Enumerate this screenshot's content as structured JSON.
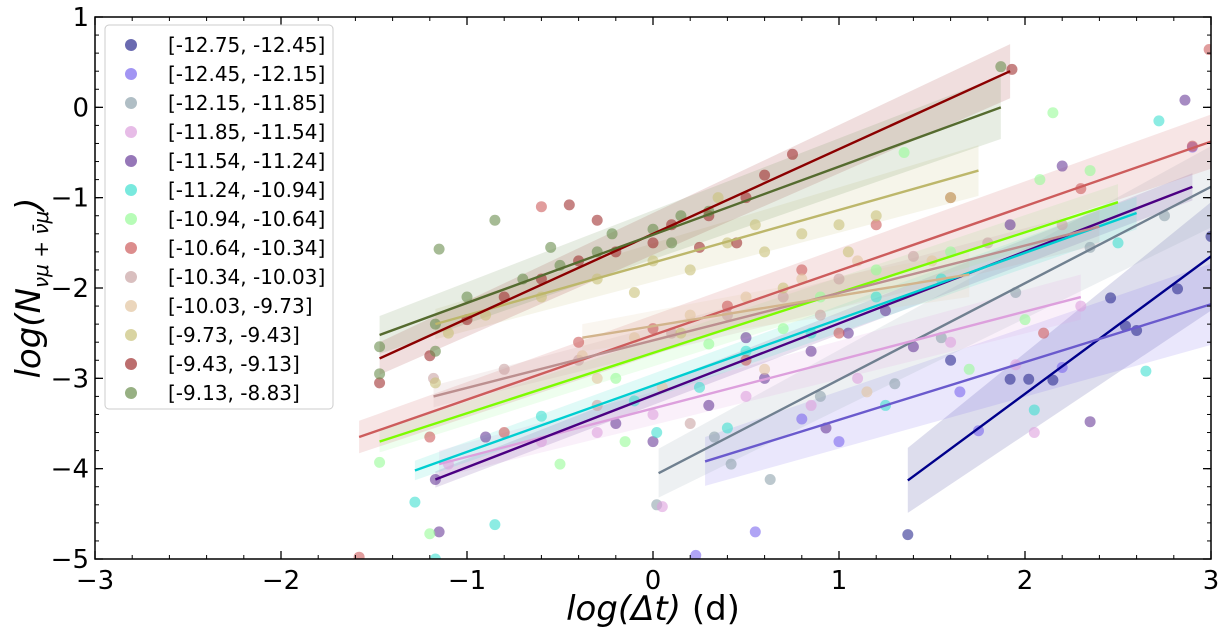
{
  "chart_data": {
    "type": "scatter",
    "xlabel_main": "log(Δt)",
    "xlabel_unit": " (d)",
    "ylabel_main": "log(N",
    "ylabel_sub": "νμ + ν̄μ",
    "ylabel_close": ")",
    "xlim": [
      -3,
      3
    ],
    "ylim": [
      -5,
      1
    ],
    "xticks": [
      -3,
      -2,
      -1,
      0,
      1,
      2,
      3
    ],
    "yticks": [
      -5,
      -4,
      -3,
      -2,
      -1,
      0,
      1
    ],
    "xtick_labels": [
      "−3",
      "−2",
      "−1",
      "0",
      "1",
      "2",
      "3"
    ],
    "ytick_labels": [
      "−5",
      "−4",
      "−3",
      "−2",
      "−1",
      "0",
      "1"
    ],
    "legend_position": "top-left",
    "series": [
      {
        "name": "[-12.75, -12.45]",
        "color": "#2b2b8f",
        "line_color": "#00008b",
        "fit": {
          "x0": 1.37,
          "x1": 3.0,
          "y0": -4.13,
          "y1": -1.65
        },
        "band": 0.6,
        "points": [
          [
            1.37,
            -4.73
          ],
          [
            1.92,
            -3.01
          ],
          [
            2.02,
            -3.01
          ],
          [
            2.46,
            -2.11
          ],
          [
            2.6,
            -2.47
          ],
          [
            2.54,
            -2.42
          ],
          [
            3.0,
            -1.43
          ],
          [
            2.82,
            -2.01
          ],
          [
            2.15,
            -3.02
          ],
          [
            1.6,
            -2.8
          ]
        ]
      },
      {
        "name": "[-12.45, -12.15]",
        "color": "#7b68ee",
        "line_color": "#6a5acd",
        "fit": {
          "x0": 0.28,
          "x1": 3.0,
          "y0": -3.92,
          "y1": -2.18
        },
        "band": 0.45,
        "points": [
          [
            0.23,
            -4.96
          ],
          [
            0.55,
            -4.7
          ],
          [
            1.0,
            -3.7
          ],
          [
            1.75,
            -3.58
          ],
          [
            2.2,
            -2.88
          ],
          [
            2.9,
            -0.44
          ],
          [
            1.65,
            -3.15
          ],
          [
            0.8,
            -3.45
          ]
        ]
      },
      {
        "name": "[-12.15, -11.85]",
        "color": "#8fa3ad",
        "line_color": "#708090",
        "fit": {
          "x0": 0.03,
          "x1": 3.0,
          "y0": -4.05,
          "y1": -0.88
        },
        "band": 0.45,
        "points": [
          [
            0.02,
            -4.4
          ],
          [
            0.33,
            -3.65
          ],
          [
            0.42,
            -3.95
          ],
          [
            0.63,
            -4.12
          ],
          [
            1.3,
            -3.06
          ],
          [
            1.95,
            -2.05
          ],
          [
            2.35,
            -1.55
          ],
          [
            2.75,
            -1.2
          ],
          [
            0.9,
            -3.2
          ],
          [
            1.55,
            -2.55
          ]
        ]
      },
      {
        "name": "[-11.85, -11.54]",
        "color": "#dda0dd",
        "line_color": "#dda0dd",
        "fit": {
          "x0": -1.15,
          "x1": 2.3,
          "y0": -3.95,
          "y1": -2.1
        },
        "band": 0.25,
        "points": [
          [
            -1.1,
            -3.95
          ],
          [
            -0.6,
            -3.7
          ],
          [
            0.0,
            -3.4
          ],
          [
            0.5,
            -3.2
          ],
          [
            1.1,
            -3.0
          ],
          [
            1.6,
            -2.6
          ],
          [
            2.05,
            -3.6
          ],
          [
            0.05,
            -4.42
          ],
          [
            0.85,
            -3.3
          ],
          [
            -0.3,
            -3.6
          ],
          [
            1.95,
            -2.85
          ],
          [
            2.3,
            -2.2
          ]
        ]
      },
      {
        "name": "[-11.54, -11.24]",
        "color": "#6a3d9a",
        "line_color": "#4b0082",
        "fit": {
          "x0": -1.17,
          "x1": 2.9,
          "y0": -4.12,
          "y1": -0.88
        },
        "band": 0.15,
        "points": [
          [
            -1.17,
            -4.12
          ],
          [
            -0.9,
            -3.65
          ],
          [
            -0.2,
            -3.5
          ],
          [
            0.3,
            -3.3
          ],
          [
            0.6,
            -3.0
          ],
          [
            0.85,
            -2.7
          ],
          [
            1.05,
            -2.5
          ],
          [
            1.4,
            -2.65
          ],
          [
            2.2,
            -0.65
          ],
          [
            2.86,
            0.08
          ],
          [
            -1.15,
            -4.7
          ],
          [
            2.35,
            -3.48
          ],
          [
            0.0,
            -3.7
          ],
          [
            0.5,
            -2.55
          ],
          [
            1.25,
            -2.25
          ],
          [
            1.92,
            -1.3
          ],
          [
            0.93,
            -3.55
          ]
        ]
      },
      {
        "name": "[-11.24, -10.94]",
        "color": "#40e0d0",
        "line_color": "#00ced1",
        "fit": {
          "x0": -1.28,
          "x1": 2.6,
          "y0": -4.02,
          "y1": -1.17
        },
        "band": 0.18,
        "points": [
          [
            -1.28,
            -4.37
          ],
          [
            -1.17,
            -5.0
          ],
          [
            -0.85,
            -4.62
          ],
          [
            -0.6,
            -3.42
          ],
          [
            -0.1,
            -3.25
          ],
          [
            0.25,
            -3.1
          ],
          [
            0.5,
            -2.7
          ],
          [
            0.85,
            -2.5
          ],
          [
            1.2,
            -2.1
          ],
          [
            2.5,
            -1.5
          ],
          [
            2.65,
            -2.92
          ],
          [
            2.72,
            -0.15
          ],
          [
            0.02,
            -3.6
          ],
          [
            0.4,
            -3.55
          ],
          [
            1.55,
            -1.9
          ],
          [
            2.05,
            -3.35
          ],
          [
            1.25,
            -3.3
          ]
        ]
      },
      {
        "name": "[-10.94, -10.64]",
        "color": "#98fb98",
        "line_color": "#7cfc00",
        "fit": {
          "x0": -1.47,
          "x1": 2.5,
          "y0": -3.7,
          "y1": -1.05
        },
        "band": 0.2,
        "points": [
          [
            -1.47,
            -3.93
          ],
          [
            -1.2,
            -4.72
          ],
          [
            -0.5,
            -3.95
          ],
          [
            -0.15,
            -3.7
          ],
          [
            0.3,
            -2.62
          ],
          [
            0.7,
            -2.45
          ],
          [
            1.2,
            -1.8
          ],
          [
            1.6,
            -1.6
          ],
          [
            2.08,
            -0.8
          ],
          [
            2.15,
            -0.06
          ],
          [
            2.35,
            -0.7
          ],
          [
            -0.2,
            -3.0
          ],
          [
            0.9,
            -2.1
          ],
          [
            2.0,
            -2.35
          ],
          [
            1.7,
            -2.9
          ],
          [
            1.35,
            -0.5
          ]
        ]
      },
      {
        "name": "[-10.64, -10.34]",
        "color": "#cd5c5c",
        "line_color": "#cd5c5c",
        "fit": {
          "x0": -1.58,
          "x1": 3.0,
          "y0": -3.65,
          "y1": -0.38
        },
        "band": 0.3,
        "points": [
          [
            -1.58,
            -4.98
          ],
          [
            -1.2,
            -3.65
          ],
          [
            -0.8,
            -3.6
          ],
          [
            -0.4,
            -2.6
          ],
          [
            0.0,
            -2.45
          ],
          [
            0.4,
            -2.2
          ],
          [
            0.8,
            -1.8
          ],
          [
            1.2,
            -1.3
          ],
          [
            1.6,
            -1.0
          ],
          [
            2.1,
            -2.5
          ],
          [
            2.9,
            -0.43
          ],
          [
            2.99,
            0.64
          ],
          [
            2.3,
            -0.9
          ],
          [
            -0.6,
            -1.1
          ],
          [
            0.5,
            -2.8
          ],
          [
            1.0,
            -2.5
          ]
        ]
      },
      {
        "name": "[-10.34, -10.03]",
        "color": "#c9a4a4",
        "line_color": "#bc8f8f",
        "fit": {
          "x0": -1.18,
          "x1": 2.4,
          "y0": -3.2,
          "y1": -1.32
        },
        "band": 0.2,
        "points": [
          [
            -1.18,
            -3.0
          ],
          [
            -0.8,
            -2.9
          ],
          [
            -0.4,
            -2.8
          ],
          [
            0.1,
            -2.5
          ],
          [
            0.4,
            -2.3
          ],
          [
            0.7,
            -2.1
          ],
          [
            1.0,
            -1.9
          ],
          [
            1.4,
            -1.65
          ],
          [
            1.8,
            -1.5
          ],
          [
            2.2,
            -1.3
          ],
          [
            0.2,
            -3.5
          ],
          [
            -0.3,
            -3.3
          ],
          [
            0.9,
            -2.3
          ]
        ]
      },
      {
        "name": "[-10.03, -9.73]",
        "color": "#e3c4a0",
        "line_color": "#d2b48c",
        "fit": {
          "x0": -0.38,
          "x1": 1.7,
          "y0": -2.55,
          "y1": -1.85
        },
        "band": 0.25,
        "points": [
          [
            -0.38,
            -2.75
          ],
          [
            -0.1,
            -2.55
          ],
          [
            0.2,
            -2.3
          ],
          [
            0.5,
            -2.1
          ],
          [
            0.8,
            -1.9
          ],
          [
            1.1,
            -1.7
          ],
          [
            1.5,
            -1.7
          ],
          [
            -0.3,
            -3.0
          ],
          [
            0.05,
            -3.1
          ],
          [
            0.6,
            -2.9
          ],
          [
            1.15,
            -3.15
          ]
        ]
      },
      {
        "name": "[-9.73, -9.43]",
        "color": "#c9c27a",
        "line_color": "#bdb76b",
        "fit": {
          "x0": -1.17,
          "x1": 1.75,
          "y0": -2.4,
          "y1": -0.7
        },
        "band": 0.28,
        "points": [
          [
            -1.17,
            -3.05
          ],
          [
            -1.1,
            -2.5
          ],
          [
            -0.9,
            -2.3
          ],
          [
            -0.6,
            -2.1
          ],
          [
            -0.3,
            -1.9
          ],
          [
            0.0,
            -1.7
          ],
          [
            0.2,
            -1.8
          ],
          [
            0.4,
            -1.5
          ],
          [
            0.6,
            -1.6
          ],
          [
            0.8,
            -1.4
          ],
          [
            1.0,
            -1.3
          ],
          [
            1.2,
            -1.2
          ],
          [
            1.6,
            -1.0
          ],
          [
            0.35,
            -1.0
          ],
          [
            -0.1,
            -2.05
          ],
          [
            0.7,
            -2.0
          ],
          [
            0.15,
            -2.5
          ],
          [
            0.55,
            -1.3
          ],
          [
            1.05,
            -1.6
          ]
        ]
      },
      {
        "name": "[-9.43, -9.13]",
        "color": "#a03030",
        "line_color": "#8b0000",
        "fit": {
          "x0": -1.47,
          "x1": 1.92,
          "y0": -2.78,
          "y1": 0.4
        },
        "band": 0.3,
        "points": [
          [
            -1.47,
            -3.05
          ],
          [
            -1.2,
            -2.75
          ],
          [
            -1.0,
            -2.35
          ],
          [
            -0.8,
            -2.1
          ],
          [
            -0.6,
            -1.9
          ],
          [
            -0.4,
            -1.7
          ],
          [
            -0.2,
            -1.6
          ],
          [
            0.0,
            -1.5
          ],
          [
            0.1,
            -1.3
          ],
          [
            0.3,
            -1.2
          ],
          [
            0.5,
            -1.0
          ],
          [
            0.6,
            -0.75
          ],
          [
            0.75,
            -0.52
          ],
          [
            1.93,
            0.42
          ],
          [
            -0.45,
            -1.08
          ],
          [
            -0.3,
            -1.25
          ],
          [
            0.25,
            -1.55
          ],
          [
            0.45,
            -1.5
          ]
        ]
      },
      {
        "name": "[-9.13, -8.83]",
        "color": "#6b8e4e",
        "line_color": "#556b2f",
        "fit": {
          "x0": -1.47,
          "x1": 1.87,
          "y0": -2.52,
          "y1": 0.0
        },
        "band": 0.35,
        "points": [
          [
            -1.47,
            -2.65
          ],
          [
            -1.47,
            -2.95
          ],
          [
            -1.17,
            -2.4
          ],
          [
            -1.15,
            -1.57
          ],
          [
            -1.0,
            -2.1
          ],
          [
            -0.85,
            -1.25
          ],
          [
            -0.7,
            -1.9
          ],
          [
            -0.55,
            -1.55
          ],
          [
            -0.3,
            -1.6
          ],
          [
            0.0,
            -1.35
          ],
          [
            0.1,
            -1.5
          ],
          [
            0.15,
            -1.2
          ],
          [
            1.87,
            0.45
          ],
          [
            -1.17,
            -2.7
          ],
          [
            -0.5,
            -1.75
          ],
          [
            -0.22,
            -1.4
          ],
          [
            0.3,
            -1.15
          ]
        ]
      }
    ]
  }
}
